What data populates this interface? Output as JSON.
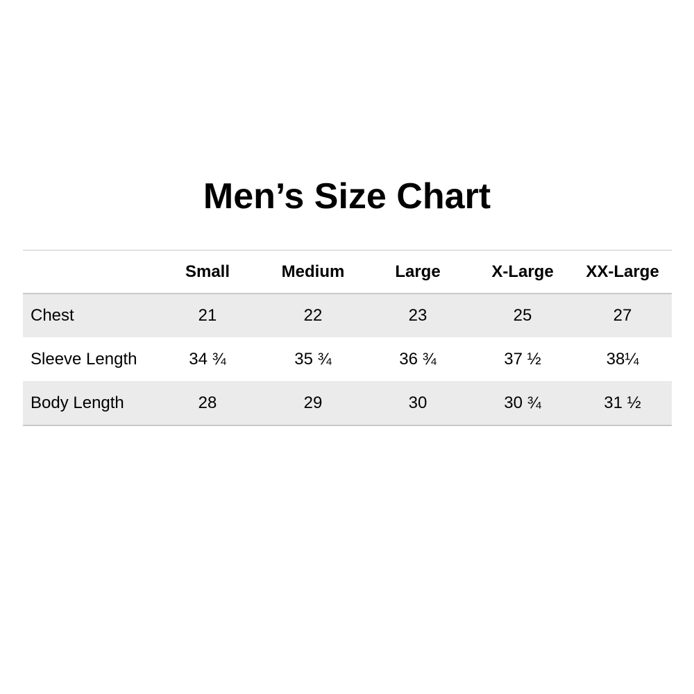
{
  "title": "Men’s Size Chart",
  "table": {
    "columns": [
      "Small",
      "Medium",
      "Large",
      "X-Large",
      "XX-Large"
    ],
    "rows": [
      [
        "Chest",
        "21",
        "22",
        "23",
        "25",
        "27"
      ],
      [
        "Sleeve Length",
        "34 ¾",
        "35 ¾",
        "36 ¾",
        "37 ½",
        "38¼"
      ],
      [
        "Body Length",
        "28",
        "29",
        "30",
        "30 ¾",
        "31 ½"
      ]
    ]
  }
}
